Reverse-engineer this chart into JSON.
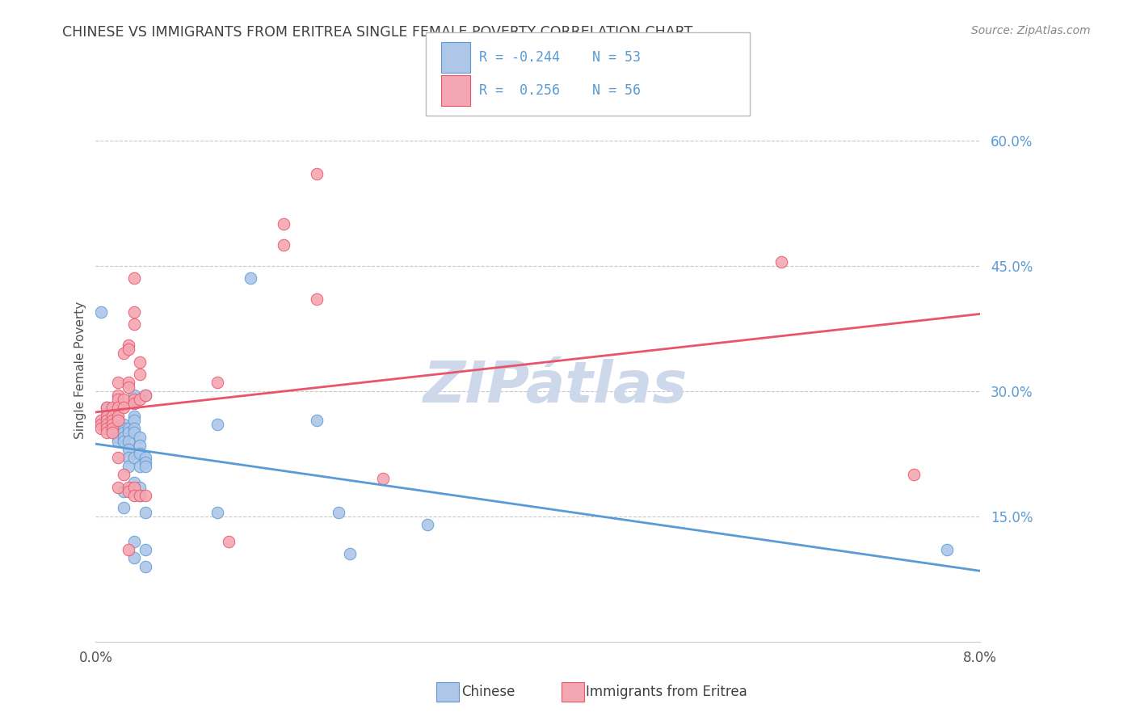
{
  "title": "CHINESE VS IMMIGRANTS FROM ERITREA SINGLE FEMALE POVERTY CORRELATION CHART",
  "source": "Source: ZipAtlas.com",
  "ylabel": "Single Female Poverty",
  "right_yticks": [
    "60.0%",
    "45.0%",
    "30.0%",
    "15.0%"
  ],
  "right_ytick_vals": [
    0.6,
    0.45,
    0.3,
    0.15
  ],
  "xlim": [
    0.0,
    0.08
  ],
  "ylim": [
    0.0,
    0.65
  ],
  "watermark": "ZIPátlas",
  "chinese_R": "-0.244",
  "chinese_N": "53",
  "eritrea_R": "0.256",
  "eritrea_N": "56",
  "chinese_scatter": [
    [
      0.0005,
      0.395
    ],
    [
      0.001,
      0.275
    ],
    [
      0.001,
      0.28
    ],
    [
      0.0015,
      0.265
    ],
    [
      0.0015,
      0.26
    ],
    [
      0.0015,
      0.255
    ],
    [
      0.002,
      0.265
    ],
    [
      0.002,
      0.25
    ],
    [
      0.002,
      0.245
    ],
    [
      0.002,
      0.24
    ],
    [
      0.0025,
      0.26
    ],
    [
      0.0025,
      0.255
    ],
    [
      0.0025,
      0.25
    ],
    [
      0.0025,
      0.245
    ],
    [
      0.0025,
      0.24
    ],
    [
      0.0025,
      0.18
    ],
    [
      0.0025,
      0.16
    ],
    [
      0.003,
      0.255
    ],
    [
      0.003,
      0.25
    ],
    [
      0.003,
      0.24
    ],
    [
      0.003,
      0.23
    ],
    [
      0.003,
      0.22
    ],
    [
      0.003,
      0.21
    ],
    [
      0.0035,
      0.295
    ],
    [
      0.0035,
      0.27
    ],
    [
      0.0035,
      0.265
    ],
    [
      0.0035,
      0.255
    ],
    [
      0.0035,
      0.25
    ],
    [
      0.0035,
      0.22
    ],
    [
      0.0035,
      0.19
    ],
    [
      0.0035,
      0.12
    ],
    [
      0.0035,
      0.1
    ],
    [
      0.004,
      0.245
    ],
    [
      0.004,
      0.235
    ],
    [
      0.004,
      0.225
    ],
    [
      0.004,
      0.21
    ],
    [
      0.004,
      0.185
    ],
    [
      0.004,
      0.175
    ],
    [
      0.0045,
      0.295
    ],
    [
      0.0045,
      0.22
    ],
    [
      0.0045,
      0.215
    ],
    [
      0.0045,
      0.21
    ],
    [
      0.0045,
      0.155
    ],
    [
      0.0045,
      0.11
    ],
    [
      0.0045,
      0.09
    ],
    [
      0.011,
      0.26
    ],
    [
      0.011,
      0.155
    ],
    [
      0.014,
      0.435
    ],
    [
      0.02,
      0.265
    ],
    [
      0.022,
      0.155
    ],
    [
      0.023,
      0.105
    ],
    [
      0.03,
      0.14
    ],
    [
      0.077,
      0.11
    ]
  ],
  "eritrea_scatter": [
    [
      0.0005,
      0.265
    ],
    [
      0.0005,
      0.26
    ],
    [
      0.0005,
      0.255
    ],
    [
      0.001,
      0.28
    ],
    [
      0.001,
      0.27
    ],
    [
      0.001,
      0.265
    ],
    [
      0.001,
      0.26
    ],
    [
      0.001,
      0.255
    ],
    [
      0.001,
      0.25
    ],
    [
      0.0015,
      0.28
    ],
    [
      0.0015,
      0.27
    ],
    [
      0.0015,
      0.265
    ],
    [
      0.0015,
      0.26
    ],
    [
      0.0015,
      0.255
    ],
    [
      0.0015,
      0.25
    ],
    [
      0.002,
      0.31
    ],
    [
      0.002,
      0.295
    ],
    [
      0.002,
      0.29
    ],
    [
      0.002,
      0.28
    ],
    [
      0.002,
      0.27
    ],
    [
      0.002,
      0.265
    ],
    [
      0.002,
      0.22
    ],
    [
      0.002,
      0.185
    ],
    [
      0.0025,
      0.345
    ],
    [
      0.0025,
      0.29
    ],
    [
      0.0025,
      0.28
    ],
    [
      0.0025,
      0.2
    ],
    [
      0.003,
      0.355
    ],
    [
      0.003,
      0.35
    ],
    [
      0.003,
      0.31
    ],
    [
      0.003,
      0.305
    ],
    [
      0.003,
      0.185
    ],
    [
      0.003,
      0.18
    ],
    [
      0.003,
      0.11
    ],
    [
      0.0035,
      0.435
    ],
    [
      0.0035,
      0.395
    ],
    [
      0.0035,
      0.38
    ],
    [
      0.0035,
      0.29
    ],
    [
      0.0035,
      0.285
    ],
    [
      0.0035,
      0.185
    ],
    [
      0.0035,
      0.175
    ],
    [
      0.004,
      0.335
    ],
    [
      0.004,
      0.32
    ],
    [
      0.004,
      0.29
    ],
    [
      0.004,
      0.175
    ],
    [
      0.0045,
      0.295
    ],
    [
      0.0045,
      0.175
    ],
    [
      0.011,
      0.31
    ],
    [
      0.012,
      0.12
    ],
    [
      0.017,
      0.5
    ],
    [
      0.017,
      0.475
    ],
    [
      0.02,
      0.56
    ],
    [
      0.02,
      0.41
    ],
    [
      0.026,
      0.195
    ],
    [
      0.062,
      0.455
    ],
    [
      0.074,
      0.2
    ]
  ],
  "chinese_line_color": "#5b9bd5",
  "chinese_face_color": "#aec6e8",
  "eritrea_line_color": "#e8546a",
  "eritrea_face_color": "#f4a7b2",
  "background_color": "#ffffff",
  "grid_color": "#c8c8c8",
  "title_color": "#404040",
  "source_color": "#888888",
  "right_axis_color": "#5b9bd5",
  "watermark_color": "#cdd8eb"
}
